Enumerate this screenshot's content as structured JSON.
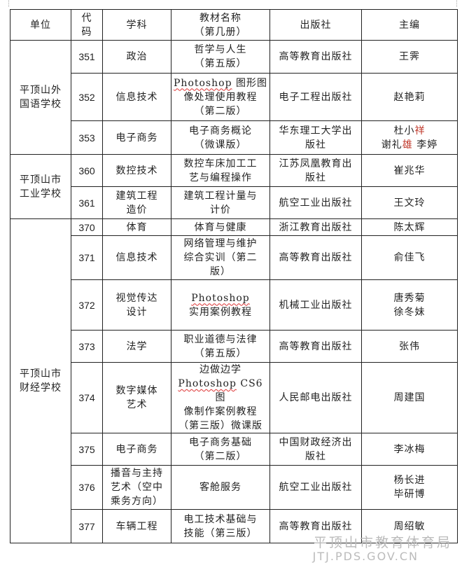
{
  "header": {
    "unit": "单位",
    "code": "代\n码",
    "subject": "学科",
    "textbook": "教材名称\n（第几册）",
    "publisher": "出版社",
    "editor": "主编"
  },
  "groups": [
    {
      "unit": "平顶山外\n国语学校",
      "rows": [
        {
          "code": "351",
          "subject": "政治",
          "textbook": "哲学与人生\n（第五版）",
          "publisher": "高等教育出版社",
          "editor": "王霁"
        },
        {
          "code": "352",
          "subject": "信息技术",
          "textbook_pre": "Photoshop",
          "textbook": " 图形图\n像处理使用教程\n（第二版）",
          "publisher": "电子工程出版社",
          "editor": "赵艳莉"
        },
        {
          "code": "353",
          "subject": "电子商务",
          "textbook": "电子商务概论\n（微课版）",
          "publisher": "华东理工大学出\n版社",
          "editor_a": "杜小",
          "editor_a_red": "祥",
          "editor_b": "谢礼",
          "editor_b_red": "雄",
          "editor_c": "  李婷"
        }
      ]
    },
    {
      "unit": "平顶山市\n工业学校",
      "rows": [
        {
          "code": "360",
          "subject": "数控技术",
          "textbook": "数控车床加工工\n艺与编程操作",
          "publisher": "江苏凤凰教育出\n版社",
          "editor": "崔兆华"
        },
        {
          "code": "361",
          "subject": "建筑工程\n造价",
          "textbook": "建筑工程计量与\n计价",
          "publisher": "航空工业出版社",
          "editor": "王文玲"
        }
      ]
    },
    {
      "unit": "平顶山市\n财经学校",
      "rows": [
        {
          "code": "370",
          "subject": "体育",
          "textbook": "体育与健康",
          "publisher": "浙江教育出版社",
          "editor": "陈太辉"
        },
        {
          "code": "371",
          "subject": "信息技术",
          "textbook": "网络管理与维护\n综合实训（第二\n版）",
          "publisher": "高等教育出版社",
          "editor": "俞佳飞"
        },
        {
          "code": "372",
          "subject": "视觉传达\n设计",
          "textbook_pre": "Photoshop",
          "textbook": "\n实用案例教程",
          "publisher": "机械工业出版社",
          "editor": "唐秀菊\n徐冬妹"
        },
        {
          "code": "373",
          "subject": "法学",
          "textbook": "职业道德与法律\n（第五版）",
          "publisher": "高等教育出版社",
          "editor": "张伟"
        },
        {
          "code": "374",
          "subject": "数字媒体\n艺术",
          "textbook_top": "边做边学\n",
          "textbook_pre": "Photoshop",
          "textbook": " CS6 图\n像制作案例教程\n（第三版）微课版",
          "publisher": "人民邮电出版社",
          "editor": "周建国"
        },
        {
          "code": "375",
          "subject": "电子商务",
          "textbook": "电子商务基础\n（第二版）",
          "publisher": "中国财政经济出\n版社",
          "editor": "李冰梅"
        },
        {
          "code": "376",
          "subject": "播音与主持\n艺术（空中\n乘务方向）",
          "textbook": "客舱服务",
          "publisher": "航空工业出版社",
          "editor": "杨长进\n毕研博"
        },
        {
          "code": "377",
          "subject": "车辆工程",
          "textbook": "电工技术基础与\n技能（第三版）",
          "publisher": "高等教育出版社",
          "editor": "周绍敏"
        }
      ]
    }
  ],
  "watermark": {
    "line1": "平顶山市教育体育局",
    "line2": "JTJ.PDS.GOV.CN"
  }
}
